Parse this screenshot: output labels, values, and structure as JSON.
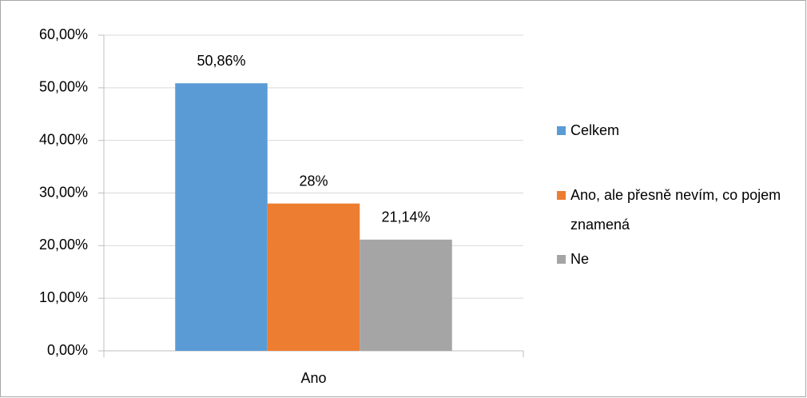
{
  "chart_data": {
    "type": "bar",
    "categories": [
      "Ano"
    ],
    "series": [
      {
        "name": "Celkem",
        "color": "#5b9bd5",
        "values": [
          50.86
        ],
        "value_labels": [
          "50,86%"
        ]
      },
      {
        "name": "Ano, ale přesně nevím, co pojem znamená",
        "color": "#ed7d31",
        "values": [
          28
        ],
        "value_labels": [
          "28%"
        ]
      },
      {
        "name": "Ne",
        "color": "#a5a5a5",
        "values": [
          21.14
        ],
        "value_labels": [
          "21,14%"
        ]
      }
    ],
    "ylim": [
      0,
      60
    ],
    "yticks": [
      {
        "value": 0,
        "label": "0,00%"
      },
      {
        "value": 10,
        "label": "10,00%"
      },
      {
        "value": 20,
        "label": "20,00%"
      },
      {
        "value": 30,
        "label": "30,00%"
      },
      {
        "value": 40,
        "label": "40,00%"
      },
      {
        "value": 50,
        "label": "50,00%"
      },
      {
        "value": 60,
        "label": "60,00%"
      }
    ],
    "grid": true,
    "legend": "right"
  }
}
